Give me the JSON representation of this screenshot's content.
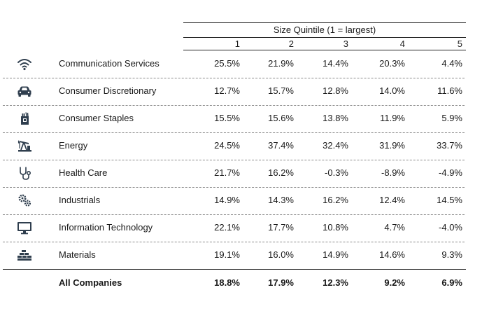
{
  "header": {
    "title": "Size Quintile (1 = largest)",
    "columns": [
      "1",
      "2",
      "3",
      "4",
      "5"
    ]
  },
  "rows": [
    {
      "label": "Communication Services",
      "icon": "wifi-icon",
      "values": [
        "25.5%",
        "21.9%",
        "14.4%",
        "20.3%",
        "4.4%"
      ]
    },
    {
      "label": "Consumer Discretionary",
      "icon": "car-icon",
      "values": [
        "12.7%",
        "15.7%",
        "12.8%",
        "14.0%",
        "11.6%"
      ]
    },
    {
      "label": "Consumer Staples",
      "icon": "grocery-bag-icon",
      "values": [
        "15.5%",
        "15.6%",
        "13.8%",
        "11.9%",
        "5.9%"
      ]
    },
    {
      "label": "Energy",
      "icon": "oil-pump-icon",
      "values": [
        "24.5%",
        "37.4%",
        "32.4%",
        "31.9%",
        "33.7%"
      ]
    },
    {
      "label": "Health Care",
      "icon": "stethoscope-icon",
      "values": [
        "21.7%",
        "16.2%",
        "-0.3%",
        "-8.9%",
        "-4.9%"
      ]
    },
    {
      "label": "Industrials",
      "icon": "gears-icon",
      "values": [
        "14.9%",
        "14.3%",
        "16.2%",
        "12.4%",
        "14.5%"
      ]
    },
    {
      "label": "Information Technology",
      "icon": "monitor-icon",
      "values": [
        "22.1%",
        "17.7%",
        "10.8%",
        "4.7%",
        "-4.0%"
      ]
    },
    {
      "label": "Materials",
      "icon": "bricks-icon",
      "values": [
        "19.1%",
        "16.0%",
        "14.9%",
        "14.6%",
        "9.3%"
      ]
    }
  ],
  "total": {
    "label": "All Companies",
    "values": [
      "18.8%",
      "17.9%",
      "12.3%",
      "9.2%",
      "6.9%"
    ]
  },
  "colors": {
    "icon": "#2f3e4e",
    "text": "#1a1a1a"
  }
}
